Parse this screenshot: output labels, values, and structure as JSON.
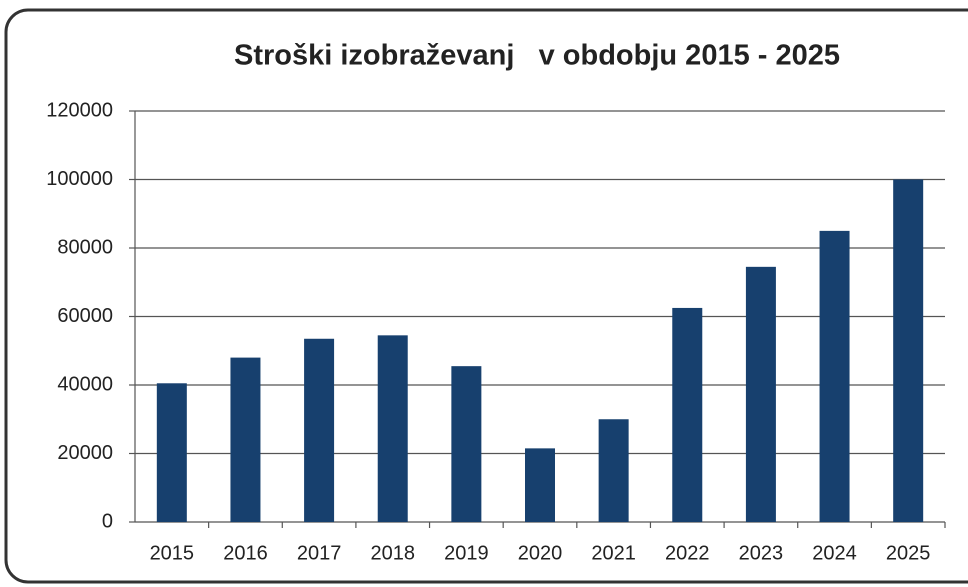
{
  "chart_data": {
    "type": "bar",
    "title": "Stroški izobraževanj   v obdobju 2015 - 2025",
    "categories": [
      "2015",
      "2016",
      "2017",
      "2018",
      "2019",
      "2020",
      "2021",
      "2022",
      "2023",
      "2024",
      "2025"
    ],
    "values": [
      40500,
      48000,
      53500,
      54500,
      45500,
      21500,
      30000,
      62500,
      74500,
      85000,
      100000
    ],
    "color": "#17406e",
    "ylim": [
      0,
      120000
    ],
    "yticks": [
      0,
      20000,
      40000,
      60000,
      80000,
      100000,
      120000
    ],
    "grid": true
  }
}
